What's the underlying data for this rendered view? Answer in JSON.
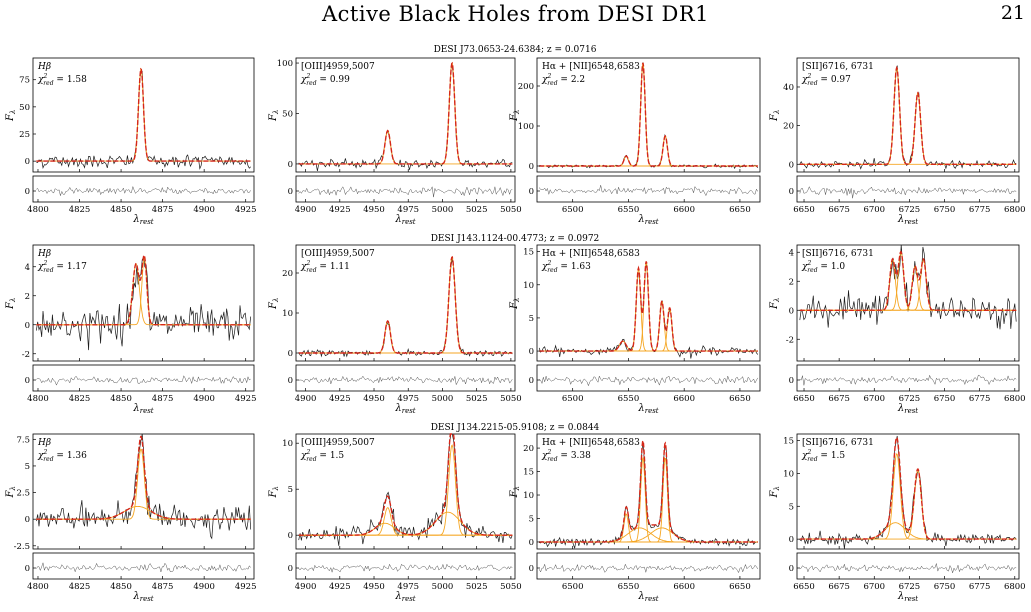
{
  "header": {
    "title": "Active Black Holes from DESI DR1",
    "page_number": "21"
  },
  "colors": {
    "data": "#1a1a1a",
    "total_fit": "#d62718",
    "components": "#f5a623",
    "fit_orange": "#ff7f0e",
    "residual": "#555555"
  },
  "chart_data": [
    {
      "object": "DESI J73.0653-24.6384; z = 0.0716",
      "panels": [
        {
          "type": "line",
          "label": "Hβ",
          "chi2": "1.58",
          "xlim": [
            4797,
            4930
          ],
          "ylim": [
            -10,
            95
          ],
          "xticks": [
            4800,
            4825,
            4850,
            4875,
            4900,
            4925
          ],
          "yticks": [
            0,
            25,
            50,
            75
          ],
          "rticks": [
            0
          ],
          "lines": [
            [
              4862,
              85,
              1.5
            ]
          ],
          "noise": 3,
          "extra": []
        },
        {
          "type": "line",
          "label": "[OIII]4959,5007",
          "chi2": "0.99",
          "xlim": [
            4893,
            5053
          ],
          "ylim": [
            -8,
            105
          ],
          "xticks": [
            4900,
            4925,
            4950,
            4975,
            5000,
            5025,
            5050
          ],
          "yticks": [
            0,
            50,
            100
          ],
          "rticks": [
            0
          ],
          "lines": [
            [
              4960,
              33,
              2
            ],
            [
              5007,
              100,
              2
            ]
          ],
          "noise": 2,
          "extra": []
        },
        {
          "type": "line",
          "label": "Hα + [NII]6548,6583",
          "chi2": "2.2",
          "xlim": [
            6468,
            6668
          ],
          "ylim": [
            -15,
            270
          ],
          "xticks": [
            6500,
            6550,
            6600,
            6650
          ],
          "yticks": [
            0,
            100,
            200
          ],
          "rticks": [
            0
          ],
          "lines": [
            [
              6548,
              25,
              2
            ],
            [
              6563,
              258,
              2
            ],
            [
              6583,
              75,
              2
            ]
          ],
          "noise": 2,
          "extra": []
        },
        {
          "type": "line",
          "label": "[SII]6716, 6731",
          "chi2": "0.97",
          "xlim": [
            6645,
            6803
          ],
          "ylim": [
            -4,
            55
          ],
          "xticks": [
            6650,
            6675,
            6700,
            6725,
            6750,
            6775,
            6800
          ],
          "yticks": [
            0,
            20,
            40
          ],
          "rticks": [
            0
          ],
          "lines": [
            [
              6716,
              50,
              2
            ],
            [
              6731,
              37,
              2
            ]
          ],
          "noise": 1,
          "extra": []
        }
      ]
    },
    {
      "object": "DESI J143.1124-00.4773; z = 0.0972",
      "panels": [
        {
          "type": "line",
          "label": "Hβ",
          "chi2": "1.17",
          "xlim": [
            4797,
            4930
          ],
          "ylim": [
            -2.5,
            5.5
          ],
          "xticks": [
            4800,
            4825,
            4850,
            4875,
            4900,
            4925
          ],
          "yticks": [
            -2,
            0,
            2,
            4
          ],
          "rticks": [
            0
          ],
          "lines": [
            [
              4859,
              4.2,
              2
            ],
            [
              4864,
              4.6,
              1.5
            ]
          ],
          "noise": 0.6,
          "extra": []
        },
        {
          "type": "line",
          "label": "[OIII]4959,5007",
          "chi2": "1.11",
          "xlim": [
            4893,
            5053
          ],
          "ylim": [
            -2,
            27
          ],
          "xticks": [
            4900,
            4925,
            4950,
            4975,
            5000,
            5025,
            5050
          ],
          "yticks": [
            0,
            10,
            20
          ],
          "rticks": [
            0
          ],
          "lines": [
            [
              4960,
              8,
              2
            ],
            [
              5007,
              24,
              2.3
            ]
          ],
          "noise": 0.4,
          "extra": []
        },
        {
          "type": "line",
          "label": "Hα + [NII]6548,6583",
          "chi2": "1.63",
          "xlim": [
            6468,
            6668
          ],
          "ylim": [
            -1.5,
            16
          ],
          "xticks": [
            6500,
            6550,
            6600,
            6650
          ],
          "yticks": [
            0,
            5,
            10,
            15
          ],
          "rticks": [
            0
          ],
          "lines": [
            [
              6545,
              1.5,
              3
            ],
            [
              6559,
              12.5,
              2
            ],
            [
              6566,
              13.5,
              2
            ],
            [
              6580,
              7.5,
              2
            ],
            [
              6587,
              6.5,
              2
            ]
          ],
          "noise": 0.3,
          "extra": []
        },
        {
          "type": "line",
          "label": "[SII]6716, 6731",
          "chi2": "1.0",
          "xlim": [
            6645,
            6803
          ],
          "ylim": [
            -3.5,
            4.5
          ],
          "xticks": [
            6650,
            6675,
            6700,
            6725,
            6750,
            6775,
            6800
          ],
          "yticks": [
            -2,
            0,
            2,
            4
          ],
          "rticks": [
            0
          ],
          "lines": [
            [
              6713,
              3.5,
              2
            ],
            [
              6719,
              4,
              2
            ],
            [
              6729,
              3,
              2
            ],
            [
              6735,
              3.5,
              2
            ]
          ],
          "noise": 0.5,
          "extra": []
        }
      ]
    },
    {
      "object": "DESI J134.2215-05.9108; z = 0.0844",
      "panels": [
        {
          "type": "line",
          "label": "Hβ",
          "chi2": "1.36",
          "xlim": [
            4797,
            4930
          ],
          "ylim": [
            -2.8,
            8
          ],
          "xticks": [
            4800,
            4825,
            4850,
            4875,
            4900,
            4925
          ],
          "yticks": [
            -2.5,
            0,
            2.5,
            5,
            7.5
          ],
          "rticks": [
            0
          ],
          "lines": [
            [
              4862,
              6.6,
              2
            ]
          ],
          "noise": 0.6,
          "extra": [
            [
              4860,
              1.2,
              8
            ]
          ]
        },
        {
          "type": "line",
          "label": "[OIII]4959,5007",
          "chi2": "1.5",
          "xlim": [
            4893,
            5053
          ],
          "ylim": [
            -1.5,
            11
          ],
          "xticks": [
            4900,
            4925,
            4950,
            4975,
            5000,
            5025,
            5050
          ],
          "yticks": [
            0,
            5,
            10
          ],
          "rticks": [
            0
          ],
          "lines": [
            [
              4960,
              3,
              2.5
            ],
            [
              5007,
              9.8,
              2.5
            ]
          ],
          "noise": 0.45,
          "extra": [
            [
              4958,
              1.3,
              7
            ],
            [
              5004,
              2.5,
              9
            ]
          ]
        },
        {
          "type": "line",
          "label": "Hα + [NII]6548,6583",
          "chi2": "3.38",
          "xlim": [
            6468,
            6668
          ],
          "ylim": [
            -1.5,
            23
          ],
          "xticks": [
            6500,
            6550,
            6600,
            6650
          ],
          "yticks": [
            0,
            5,
            10,
            15,
            20
          ],
          "rticks": [
            0
          ],
          "lines": [
            [
              6548,
              6,
              2
            ],
            [
              6563,
              18,
              2
            ],
            [
              6583,
              18,
              2
            ]
          ],
          "noise": 0.4,
          "extra": [
            [
              6560,
              3,
              10
            ],
            [
              6580,
              3,
              10
            ]
          ]
        },
        {
          "type": "line",
          "label": "[SII]6716, 6731",
          "chi2": "1.5",
          "xlim": [
            6645,
            6803
          ],
          "ylim": [
            -1.5,
            16
          ],
          "xticks": [
            6650,
            6675,
            6700,
            6725,
            6750,
            6775,
            6800
          ],
          "yticks": [
            0,
            5,
            10,
            15
          ],
          "rticks": [
            0
          ],
          "lines": [
            [
              6716,
              13,
              2.5
            ],
            [
              6731,
              10.5,
              2.5
            ]
          ],
          "noise": 0.45,
          "extra": [
            [
              6715,
              2.5,
              7
            ]
          ]
        }
      ]
    }
  ],
  "axis_labels": {
    "y": "F",
    "y_sub": "λ",
    "x": "λ",
    "x_sub": "rest",
    "chi_sym": "χ",
    "chi_sub": "red",
    "chi_sup": "2"
  }
}
